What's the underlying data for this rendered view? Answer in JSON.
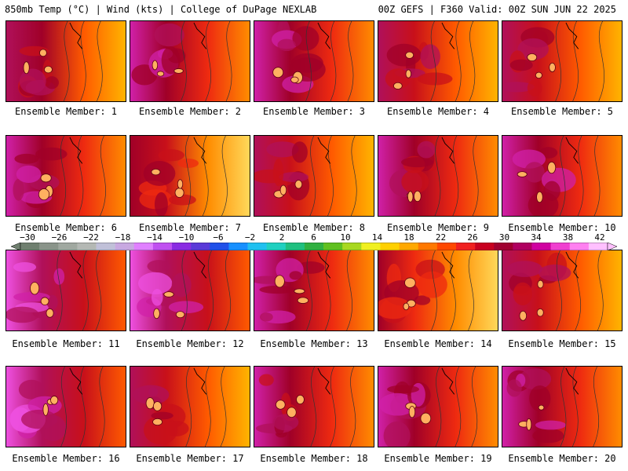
{
  "header": {
    "left_title": "850mb Temp (°C) | Wind (kts) | College of DuPage NEXLAB",
    "right_title": "00Z GEFS | F360 Valid: 00Z SUN JUN 22 2025"
  },
  "panels": [
    {
      "label": "Ensemble Member: 1",
      "warmth": 0.62
    },
    {
      "label": "Ensemble Member: 2",
      "warmth": 0.72
    },
    {
      "label": "Ensemble Member: 3",
      "warmth": 0.7
    },
    {
      "label": "Ensemble Member: 4",
      "warmth": 0.6
    },
    {
      "label": "Ensemble Member: 5",
      "warmth": 0.55
    },
    {
      "label": "Ensemble Member: 6",
      "warmth": 0.66
    },
    {
      "label": "Ensemble Member: 7",
      "warmth": 0.5
    },
    {
      "label": "Ensemble Member: 8",
      "warmth": 0.58
    },
    {
      "label": "Ensemble Member: 9",
      "warmth": 0.64
    },
    {
      "label": "Ensemble Member: 10",
      "warmth": 0.7
    },
    {
      "label": "Ensemble Member: 11",
      "warmth": 0.82
    },
    {
      "label": "Ensemble Member: 12",
      "warmth": 0.8
    },
    {
      "label": "Ensemble Member: 13",
      "warmth": 0.72
    },
    {
      "label": "Ensemble Member: 14",
      "warmth": 0.48
    },
    {
      "label": "Ensemble Member: 15",
      "warmth": 0.56
    },
    {
      "label": "Ensemble Member: 16",
      "warmth": 0.78
    },
    {
      "label": "Ensemble Member: 17",
      "warmth": 0.6
    },
    {
      "label": "Ensemble Member: 18",
      "warmth": 0.64
    },
    {
      "label": "Ensemble Member: 19",
      "warmth": 0.66
    },
    {
      "label": "Ensemble Member: 20",
      "warmth": 0.68
    }
  ],
  "colorbar": {
    "ticks": [
      "−30",
      "−26",
      "−22",
      "−18",
      "−14",
      "−10",
      "−6",
      "−2",
      "2",
      "6",
      "10",
      "14",
      "18",
      "22",
      "26",
      "30",
      "34",
      "38",
      "42"
    ],
    "min": -32,
    "max": 44,
    "colors": [
      "#6f7f6f",
      "#8a948a",
      "#a0a8a0",
      "#b4b8b4",
      "#c0c0d8",
      "#c8a8e0",
      "#e080ff",
      "#c050f0",
      "#8a2be2",
      "#5a3ad8",
      "#2050e8",
      "#1890ff",
      "#20c0f0",
      "#20d0c0",
      "#20c080",
      "#30b040",
      "#60c020",
      "#a8d820",
      "#f0f020",
      "#ffd000",
      "#ffa800",
      "#ff7800",
      "#ff4800",
      "#f02020",
      "#c80020",
      "#a00030",
      "#b00060",
      "#d000a0",
      "#f040d0",
      "#ff80f0",
      "#ffc0ff"
    ]
  }
}
